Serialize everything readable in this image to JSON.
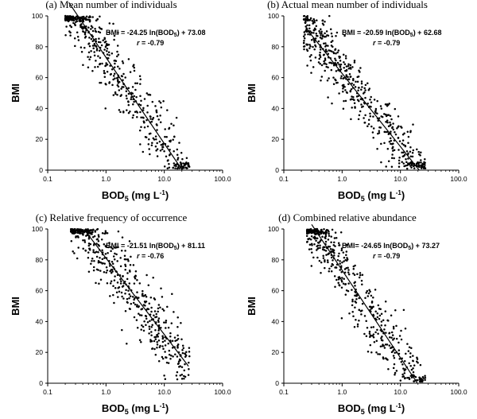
{
  "chart_data": [
    {
      "type": "scatter",
      "title": "(a) Mean number of individuals",
      "xlabel": "BOD5 (mg L-1)",
      "ylabel": "BMI",
      "x_scale": "log",
      "xlim": [
        0.1,
        100.0
      ],
      "ylim": [
        0,
        100
      ],
      "x_ticks": [
        "0.1",
        "1.0",
        "10.0",
        "100.0"
      ],
      "y_ticks": [
        "0",
        "20",
        "40",
        "60",
        "80",
        "100"
      ],
      "equation": "BMI = -24.25 ln(BOD5) + 73.08",
      "r_text": "r = -0.79",
      "fit": {
        "slope": -24.25,
        "intercept": 73.08,
        "x_range": [
          0.23,
          20.3
        ]
      },
      "scatter": {
        "x_range": [
          0.2,
          27.0
        ],
        "noise": 11,
        "n": 520
      },
      "grid": false,
      "legend": "none"
    },
    {
      "type": "scatter",
      "title": "(b) Actual mean number of individuals",
      "xlabel": "BOD5 (mg L-1)",
      "ylabel": "BMI",
      "x_scale": "log",
      "xlim": [
        0.1,
        100.0
      ],
      "ylim": [
        0,
        100
      ],
      "x_ticks": [
        "0.1",
        "1.0",
        "10.0",
        "100.0"
      ],
      "y_ticks": [
        "0",
        "20",
        "40",
        "60",
        "80",
        "100"
      ],
      "equation": "BMI = -20.59 ln(BOD5) + 62.68",
      "r_text": "r = -0.79",
      "fit": {
        "slope": -20.59,
        "intercept": 62.68,
        "x_range": [
          0.24,
          21.0
        ]
      },
      "scatter": {
        "x_range": [
          0.22,
          27.0
        ],
        "noise": 10,
        "n": 520
      },
      "grid": false,
      "legend": "none"
    },
    {
      "type": "scatter",
      "title": "(c) Relative frequency of occurrence",
      "xlabel": "BOD5 (mg L-1)",
      "ylabel": "BMI",
      "x_scale": "log",
      "xlim": [
        0.1,
        100.0
      ],
      "ylim": [
        0,
        100
      ],
      "x_ticks": [
        "0.1",
        "1.0",
        "10.0",
        "100.0"
      ],
      "y_ticks": [
        "0",
        "20",
        "40",
        "60",
        "80",
        "100"
      ],
      "equation": "BMI = -21.51 ln(BOD5) + 81.11",
      "r_text": "r = -0.76",
      "fit": {
        "slope": -21.51,
        "intercept": 81.11,
        "x_range": [
          0.42,
          26.0
        ]
      },
      "scatter": {
        "x_range": [
          0.25,
          27.0
        ],
        "noise": 11,
        "n": 520
      },
      "grid": false,
      "legend": "none"
    },
    {
      "type": "scatter",
      "title": "(d) Combined relative abundance",
      "xlabel": "BOD5 (mg L-1)",
      "ylabel": "BMI",
      "x_scale": "log",
      "xlim": [
        0.1,
        100.0
      ],
      "ylim": [
        0,
        100
      ],
      "x_ticks": [
        "0.1",
        "1.0",
        "10.0",
        "100.0"
      ],
      "y_ticks": [
        "0",
        "20",
        "40",
        "60",
        "80",
        "100"
      ],
      "equation": "BMI= -24.65 ln(BOD5) + 73.27",
      "r_text": "r = -0.79",
      "fit": {
        "slope": -24.65,
        "intercept": 73.27,
        "x_range": [
          0.3,
          19.6
        ]
      },
      "scatter": {
        "x_range": [
          0.25,
          27.0
        ],
        "noise": 11,
        "n": 520
      },
      "grid": false,
      "legend": "none"
    }
  ],
  "colors": {
    "points": "#000000",
    "line": "#000000",
    "axes": "#000000"
  }
}
